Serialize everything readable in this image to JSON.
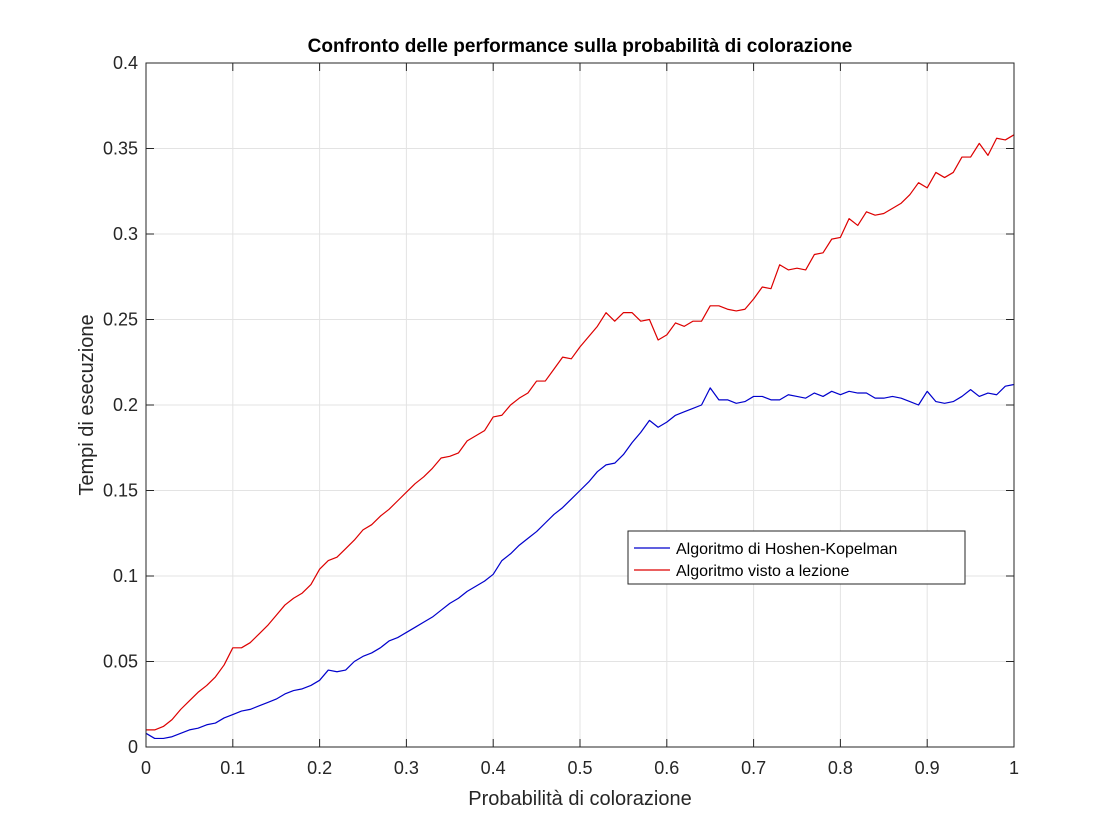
{
  "chart_data": {
    "type": "line",
    "title": "Confronto delle performance sulla probabilità di colorazione",
    "xlabel": "Probabilità di colorazione",
    "ylabel": "Tempi di esecuzione",
    "xlim": [
      0,
      1
    ],
    "ylim": [
      0,
      0.4
    ],
    "xticks": [
      0,
      0.1,
      0.2,
      0.3,
      0.4,
      0.5,
      0.6,
      0.7,
      0.8,
      0.9,
      1
    ],
    "xtick_labels": [
      "0",
      "0.1",
      "0.2",
      "0.3",
      "0.4",
      "0.5",
      "0.6",
      "0.7",
      "0.8",
      "0.9",
      "1"
    ],
    "yticks": [
      0,
      0.05,
      0.1,
      0.15,
      0.2,
      0.25,
      0.3,
      0.35,
      0.4
    ],
    "ytick_labels": [
      "0",
      "0.05",
      "0.1",
      "0.15",
      "0.2",
      "0.25",
      "0.3",
      "0.35",
      "0.4"
    ],
    "grid": true,
    "legend_position": "center-right",
    "series": [
      {
        "name": "Algoritmo di Hoshen-Kopelman",
        "color": "#0000cc",
        "x": [
          0,
          0.01,
          0.02,
          0.03,
          0.04,
          0.05,
          0.06,
          0.07,
          0.08,
          0.09,
          0.1,
          0.11,
          0.12,
          0.13,
          0.14,
          0.15,
          0.16,
          0.17,
          0.18,
          0.19,
          0.2,
          0.21,
          0.22,
          0.23,
          0.24,
          0.25,
          0.26,
          0.27,
          0.28,
          0.29,
          0.3,
          0.31,
          0.32,
          0.33,
          0.34,
          0.35,
          0.36,
          0.37,
          0.38,
          0.39,
          0.4,
          0.41,
          0.42,
          0.43,
          0.44,
          0.45,
          0.46,
          0.47,
          0.48,
          0.49,
          0.5,
          0.51,
          0.52,
          0.53,
          0.54,
          0.55,
          0.56,
          0.57,
          0.58,
          0.59,
          0.6,
          0.61,
          0.62,
          0.63,
          0.64,
          0.65,
          0.66,
          0.67,
          0.68,
          0.69,
          0.7,
          0.71,
          0.72,
          0.73,
          0.74,
          0.75,
          0.76,
          0.77,
          0.78,
          0.79,
          0.8,
          0.81,
          0.82,
          0.83,
          0.84,
          0.85,
          0.86,
          0.87,
          0.88,
          0.89,
          0.9,
          0.91,
          0.92,
          0.93,
          0.94,
          0.95,
          0.96,
          0.97,
          0.98,
          0.99,
          1.0
        ],
        "y": [
          0.008,
          0.005,
          0.005,
          0.006,
          0.008,
          0.01,
          0.011,
          0.013,
          0.014,
          0.017,
          0.019,
          0.021,
          0.022,
          0.024,
          0.026,
          0.028,
          0.031,
          0.033,
          0.034,
          0.036,
          0.039,
          0.045,
          0.044,
          0.045,
          0.05,
          0.053,
          0.055,
          0.058,
          0.062,
          0.064,
          0.067,
          0.07,
          0.073,
          0.076,
          0.08,
          0.084,
          0.087,
          0.091,
          0.094,
          0.097,
          0.101,
          0.109,
          0.113,
          0.118,
          0.122,
          0.126,
          0.131,
          0.136,
          0.14,
          0.145,
          0.15,
          0.155,
          0.161,
          0.165,
          0.166,
          0.171,
          0.178,
          0.184,
          0.191,
          0.187,
          0.19,
          0.194,
          0.196,
          0.198,
          0.2,
          0.21,
          0.203,
          0.203,
          0.201,
          0.202,
          0.205,
          0.205,
          0.203,
          0.203,
          0.206,
          0.205,
          0.204,
          0.207,
          0.205,
          0.208,
          0.206,
          0.208,
          0.207,
          0.207,
          0.204,
          0.204,
          0.205,
          0.204,
          0.202,
          0.2,
          0.208,
          0.202,
          0.201,
          0.202,
          0.205,
          0.209,
          0.205,
          0.207,
          0.206,
          0.211,
          0.212
        ]
      },
      {
        "name": "Algoritmo visto a lezione",
        "color": "#dd0000",
        "x": [
          0,
          0.01,
          0.02,
          0.03,
          0.04,
          0.05,
          0.06,
          0.07,
          0.08,
          0.09,
          0.1,
          0.11,
          0.12,
          0.13,
          0.14,
          0.15,
          0.16,
          0.17,
          0.18,
          0.19,
          0.2,
          0.21,
          0.22,
          0.23,
          0.24,
          0.25,
          0.26,
          0.27,
          0.28,
          0.29,
          0.3,
          0.31,
          0.32,
          0.33,
          0.34,
          0.35,
          0.36,
          0.37,
          0.38,
          0.39,
          0.4,
          0.41,
          0.42,
          0.43,
          0.44,
          0.45,
          0.46,
          0.47,
          0.48,
          0.49,
          0.5,
          0.51,
          0.52,
          0.53,
          0.54,
          0.55,
          0.56,
          0.57,
          0.58,
          0.59,
          0.6,
          0.61,
          0.62,
          0.63,
          0.64,
          0.65,
          0.66,
          0.67,
          0.68,
          0.69,
          0.7,
          0.71,
          0.72,
          0.73,
          0.74,
          0.75,
          0.76,
          0.77,
          0.78,
          0.79,
          0.8,
          0.81,
          0.82,
          0.83,
          0.84,
          0.85,
          0.86,
          0.87,
          0.88,
          0.89,
          0.9,
          0.91,
          0.92,
          0.93,
          0.94,
          0.95,
          0.96,
          0.97,
          0.98,
          0.99,
          1.0
        ],
        "y": [
          0.01,
          0.01,
          0.012,
          0.016,
          0.022,
          0.027,
          0.032,
          0.036,
          0.041,
          0.048,
          0.058,
          0.058,
          0.061,
          0.066,
          0.071,
          0.077,
          0.083,
          0.087,
          0.09,
          0.095,
          0.104,
          0.109,
          0.111,
          0.116,
          0.121,
          0.127,
          0.13,
          0.135,
          0.139,
          0.144,
          0.149,
          0.154,
          0.158,
          0.163,
          0.169,
          0.17,
          0.172,
          0.179,
          0.182,
          0.185,
          0.193,
          0.194,
          0.2,
          0.204,
          0.207,
          0.214,
          0.214,
          0.221,
          0.228,
          0.227,
          0.234,
          0.24,
          0.246,
          0.254,
          0.249,
          0.254,
          0.254,
          0.249,
          0.25,
          0.238,
          0.241,
          0.248,
          0.246,
          0.249,
          0.249,
          0.258,
          0.258,
          0.256,
          0.255,
          0.256,
          0.262,
          0.269,
          0.268,
          0.282,
          0.279,
          0.28,
          0.279,
          0.288,
          0.289,
          0.297,
          0.298,
          0.309,
          0.305,
          0.313,
          0.311,
          0.312,
          0.315,
          0.318,
          0.323,
          0.33,
          0.327,
          0.336,
          0.333,
          0.336,
          0.345,
          0.345,
          0.353,
          0.346,
          0.356,
          0.355,
          0.358
        ]
      }
    ]
  }
}
